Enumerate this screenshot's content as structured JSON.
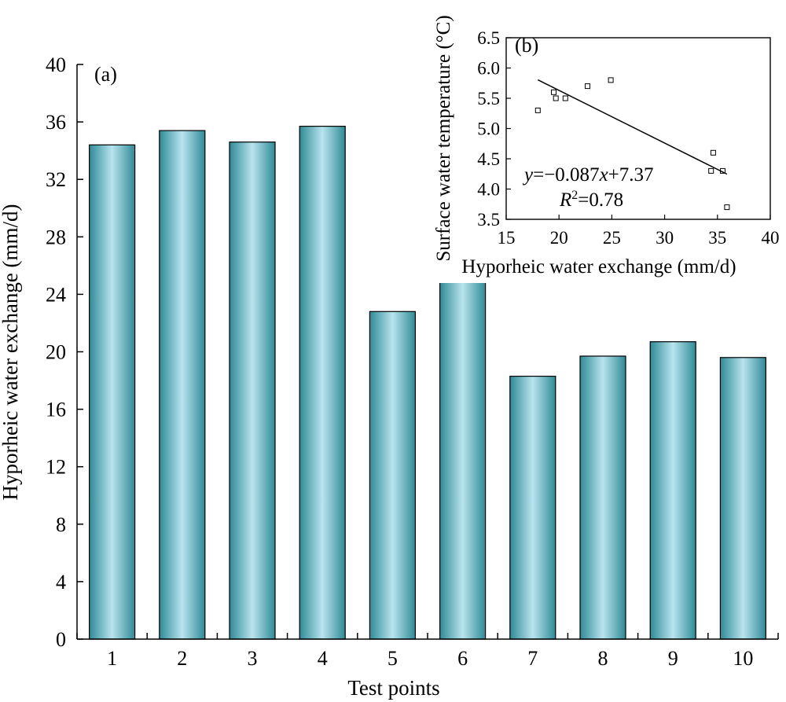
{
  "colors": {
    "bar_edge": "#2e8b96",
    "bar_mid": "#b8e4ee",
    "bar_outline": "#000000",
    "axis": "#000000"
  },
  "chart_data": [
    {
      "type": "bar",
      "panel_label": "(a)",
      "xlabel": "Test points",
      "ylabel": "Hyporheic water exchange (mm/d)",
      "categories": [
        "1",
        "2",
        "3",
        "4",
        "5",
        "6",
        "7",
        "8",
        "9",
        "10"
      ],
      "values": [
        34.4,
        35.4,
        34.6,
        35.7,
        22.8,
        24.9,
        18.3,
        19.7,
        20.7,
        19.6
      ],
      "ylim": [
        0,
        40
      ],
      "yticks": [
        0,
        4,
        8,
        12,
        16,
        20,
        24,
        28,
        32,
        36,
        40
      ],
      "grid": false
    },
    {
      "type": "scatter",
      "panel_label": "(b)",
      "xlabel": "Hyporheic water exchange (mm/d)",
      "ylabel": "Surface water temperature (°C)",
      "xlim": [
        15,
        40
      ],
      "ylim": [
        3.5,
        6.5
      ],
      "xticks": [
        15,
        20,
        25,
        30,
        35,
        40
      ],
      "yticks": [
        3.5,
        4.0,
        4.5,
        5.0,
        5.5,
        6.0,
        6.5
      ],
      "points": [
        {
          "x": 18.0,
          "y": 5.3
        },
        {
          "x": 19.5,
          "y": 5.6
        },
        {
          "x": 19.7,
          "y": 5.5
        },
        {
          "x": 20.6,
          "y": 5.5
        },
        {
          "x": 22.7,
          "y": 5.7
        },
        {
          "x": 24.9,
          "y": 5.8
        },
        {
          "x": 34.4,
          "y": 4.3
        },
        {
          "x": 34.6,
          "y": 4.6
        },
        {
          "x": 35.5,
          "y": 4.3
        },
        {
          "x": 35.9,
          "y": 3.7
        }
      ],
      "fit": {
        "slope": -0.087,
        "intercept": 7.37,
        "x_range": [
          18.0,
          35.9
        ]
      },
      "equation": {
        "y_var": "y",
        "equals_coef": "=−0.087",
        "x_var": "x",
        "constant": "+7.37"
      },
      "r_squared": {
        "label": "R",
        "sup": "2",
        "value": "=0.78"
      },
      "grid": false
    }
  ]
}
